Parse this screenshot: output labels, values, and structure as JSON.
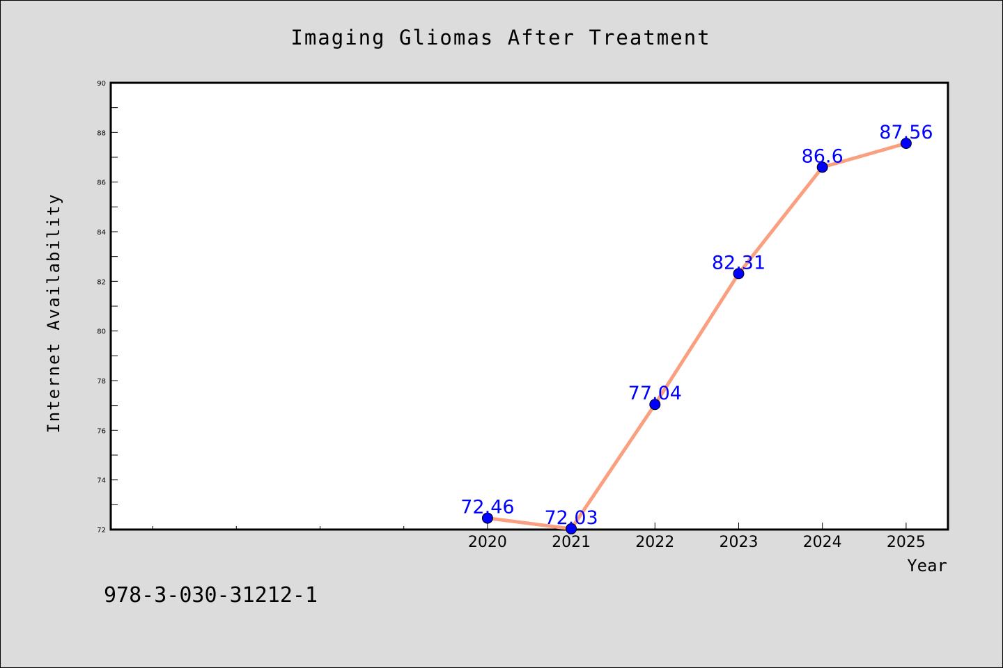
{
  "footer_text": "978-3-030-31212-1",
  "colors": {
    "background": "#dcdcdc",
    "plot_background": "#ffffff",
    "line": "#fa9f7f",
    "marker": "#0000ff",
    "data_label": "#0000ff"
  },
  "chart_data": {
    "type": "line",
    "title": "Imaging Gliomas After Treatment",
    "xlabel": "Year",
    "ylabel": "Internet Availability",
    "x": [
      2020,
      2021,
      2022,
      2023,
      2024,
      2025
    ],
    "x_tick_labels": [
      "2020",
      "2021",
      "2022",
      "2023",
      "2024",
      "2025"
    ],
    "xlim": [
      2015.5,
      2025.5
    ],
    "x_minor_ticks": [
      2016,
      2017,
      2018,
      2019
    ],
    "series": [
      {
        "values": [
          72.46,
          72.03,
          77.04,
          82.31,
          86.6,
          87.56
        ],
        "labels": [
          "72.46",
          "72.03",
          "77.04",
          "82.31",
          "86.6",
          "87.56"
        ]
      }
    ],
    "ylim": [
      72,
      90
    ],
    "y_ticks": [
      72,
      74,
      76,
      78,
      80,
      82,
      84,
      86,
      88,
      90
    ],
    "y_tick_labels": [
      "72",
      "74",
      "76",
      "78",
      "80",
      "82",
      "84",
      "86",
      "88",
      "90"
    ],
    "grid": false,
    "legend": "none"
  }
}
